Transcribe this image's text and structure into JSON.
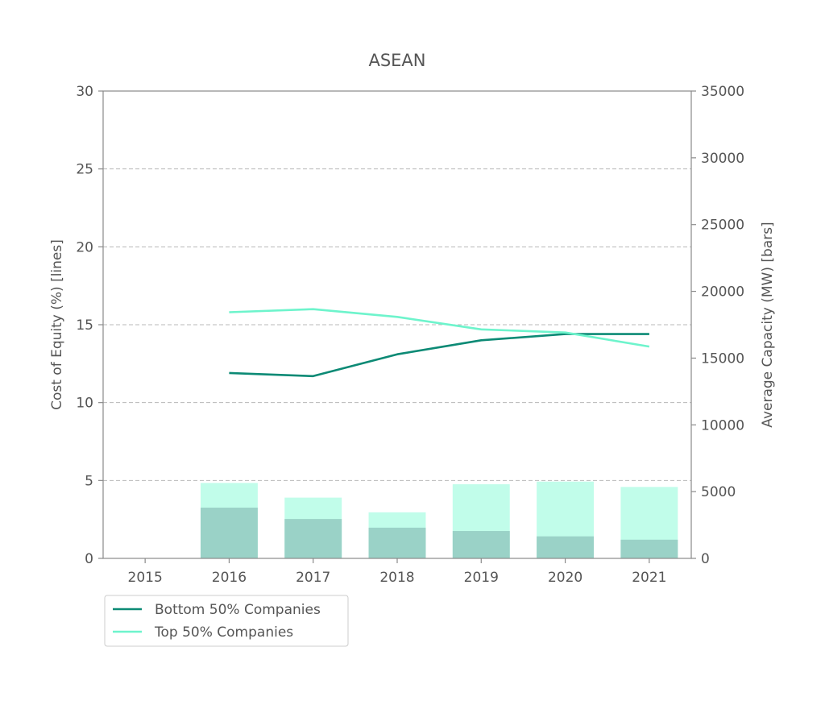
{
  "chart_data": {
    "type": "bar",
    "title": "ASEAN",
    "categories": [
      "2015",
      "2016",
      "2017",
      "2018",
      "2019",
      "2020",
      "2021"
    ],
    "ylabel_left": "Cost of Equity (%) [lines]",
    "ylabel_right": "Average Capacity (MW) [bars]",
    "ylim_left": [
      0,
      30
    ],
    "yticks_left": [
      0,
      5,
      10,
      15,
      20,
      25,
      30
    ],
    "ylim_right": [
      0,
      35000
    ],
    "yticks_right": [
      0,
      5000,
      10000,
      15000,
      20000,
      25000,
      30000,
      35000
    ],
    "grid": "horizontal dashed",
    "legend_position": "bottom-left",
    "bar_series": [
      {
        "role": "top",
        "color": "#c1fdea",
        "values": [
          null,
          5650,
          4550,
          3450,
          5550,
          5750,
          5350
        ]
      },
      {
        "role": "bottom",
        "color": "#9ad2c7",
        "values": [
          null,
          3800,
          2950,
          2300,
          2050,
          1650,
          1400
        ]
      }
    ],
    "series": [
      {
        "name": "Bottom 50% Companies",
        "color": "#0c8a75",
        "values": [
          null,
          11.9,
          11.7,
          13.1,
          14.0,
          14.4,
          14.4
        ]
      },
      {
        "name": "Top 50% Companies",
        "color": "#6ef4cc",
        "values": [
          null,
          15.8,
          16.0,
          15.5,
          14.7,
          14.5,
          13.6
        ]
      }
    ]
  }
}
